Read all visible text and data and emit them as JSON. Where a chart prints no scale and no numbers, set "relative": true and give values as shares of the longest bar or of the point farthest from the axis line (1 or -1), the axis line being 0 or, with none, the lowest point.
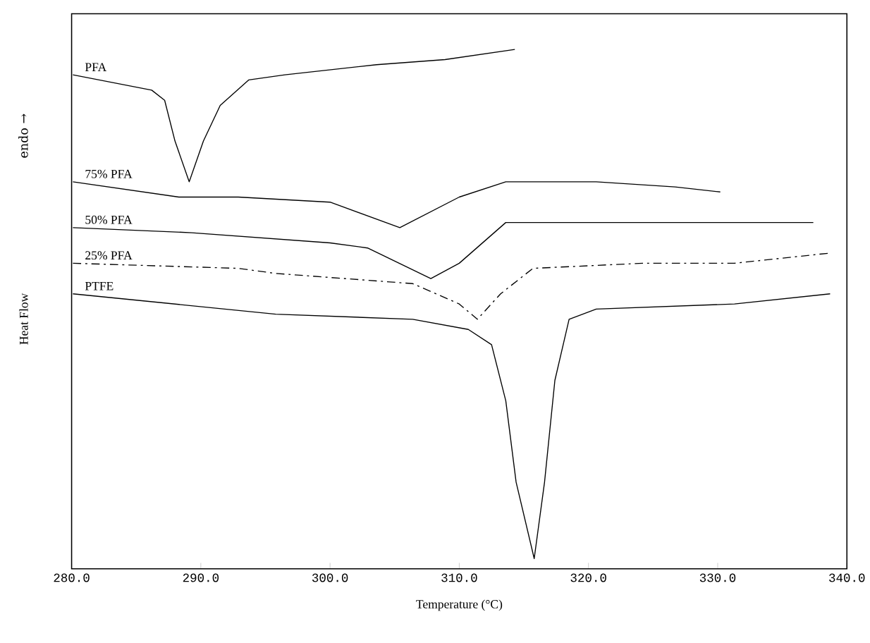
{
  "chart_data": {
    "type": "line",
    "relative": true,
    "xlabel": "Temperature (°C)",
    "ylabel": "Heat Flow",
    "annotations": [
      "endo →"
    ],
    "xlim": [
      280,
      340
    ],
    "xticks": [
      {
        "value": 280,
        "label": "280.0"
      },
      {
        "value": 290,
        "label": "290.0"
      },
      {
        "value": 300,
        "label": "300.0"
      },
      {
        "value": 310,
        "label": "310.0"
      },
      {
        "value": 320,
        "label": "320.0"
      },
      {
        "value": 330,
        "label": "330.0"
      },
      {
        "value": 340,
        "label": "340.0"
      }
    ],
    "grid": false,
    "legend": false,
    "marker": "none",
    "series": [
      {
        "name": "PFA",
        "color": "#000000",
        "line_style": "solid",
        "x": [
          280.1,
          286.2,
          287.2,
          288.0,
          289.1,
          290.2,
          291.5,
          293.7,
          296.5,
          303.6,
          308.9,
          314.3
        ],
        "values": [
          0.95,
          0.92,
          0.9,
          0.82,
          0.74,
          0.82,
          0.89,
          0.94,
          0.95,
          0.97,
          0.98,
          1.0
        ]
      },
      {
        "name": "75% PFA",
        "color": "#000000",
        "line_style": "solid",
        "x": [
          280.1,
          288.3,
          292.9,
          300.0,
          305.4,
          310.0,
          313.6,
          320.6,
          326.7,
          330.2
        ],
        "values": [
          0.74,
          0.71,
          0.71,
          0.7,
          0.65,
          0.71,
          0.74,
          0.74,
          0.73,
          0.72
        ]
      },
      {
        "name": "50% PFA",
        "color": "#000000",
        "line_style": "solid",
        "x": [
          280.1,
          289.3,
          300.0,
          302.9,
          307.8,
          310.0,
          313.6,
          320.6,
          331.3,
          337.4
        ],
        "values": [
          0.65,
          0.64,
          0.62,
          0.61,
          0.55,
          0.58,
          0.66,
          0.66,
          0.66,
          0.66
        ]
      },
      {
        "name": "25% PFA",
        "color": "#000000",
        "line_style": "dashdot",
        "x": [
          280.1,
          292.9,
          295.8,
          306.4,
          310.0,
          311.4,
          313.2,
          315.7,
          324.2,
          331.3,
          338.7
        ],
        "values": [
          0.58,
          0.57,
          0.56,
          0.54,
          0.5,
          0.47,
          0.52,
          0.57,
          0.58,
          0.58,
          0.6
        ]
      },
      {
        "name": "PTFE",
        "color": "#000000",
        "line_style": "solid",
        "x": [
          280.1,
          295.8,
          306.4,
          310.7,
          312.5,
          313.6,
          314.4,
          315.8,
          316.6,
          317.4,
          318.5,
          320.6,
          331.3,
          338.7
        ],
        "values": [
          0.52,
          0.48,
          0.47,
          0.45,
          0.42,
          0.31,
          0.15,
          0.0,
          0.15,
          0.35,
          0.47,
          0.49,
          0.5,
          0.52
        ]
      }
    ]
  }
}
